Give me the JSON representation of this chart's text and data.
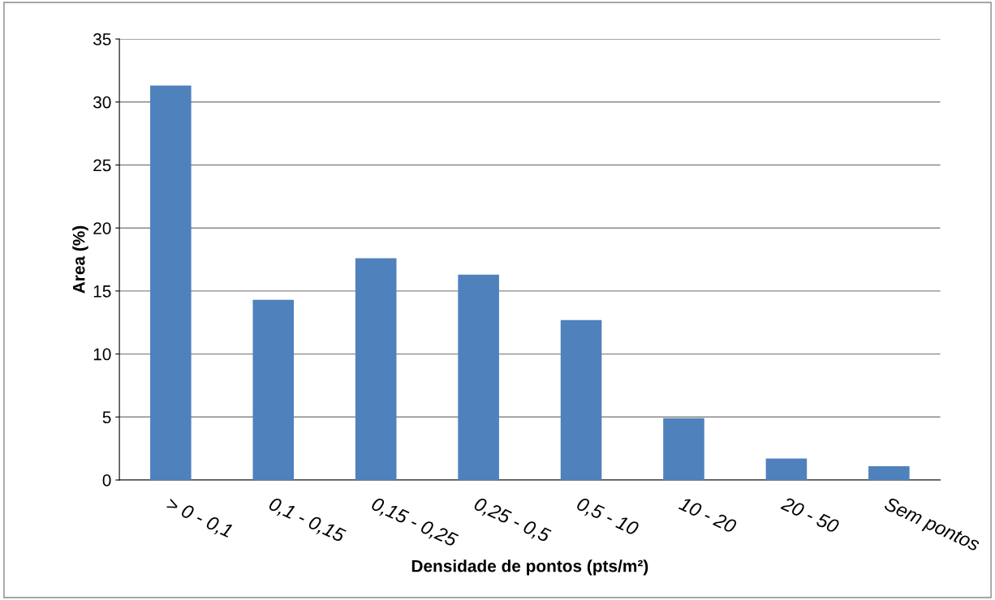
{
  "chart_data": {
    "type": "bar",
    "xlabel": "Densidade de pontos (pts/m²)",
    "ylabel": "Area (%)",
    "categories": [
      "> 0 - 0,1",
      "0,1 - 0,15",
      "0,15 - 0,25",
      "0,25 - 0,5",
      "0,5 - 10",
      "10 - 20",
      "20 - 50",
      "Sem pontos"
    ],
    "values": [
      31.3,
      14.3,
      17.6,
      16.3,
      12.7,
      4.9,
      1.7,
      1.1
    ],
    "color": "#4f81bd",
    "ylim": [
      0,
      35
    ],
    "yticks": [
      0,
      5,
      10,
      15,
      20,
      25,
      30,
      35
    ],
    "grid": "y",
    "legend": false
  }
}
